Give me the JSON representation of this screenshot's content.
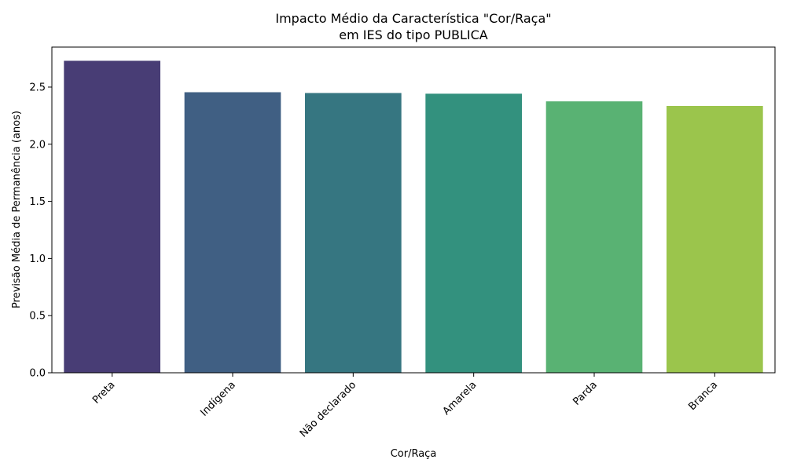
{
  "chart_data": {
    "type": "bar",
    "title_line1": "Impacto Médio da Característica \"Cor/Raça\"",
    "title_line2": "em IES do tipo PUBLICA",
    "xlabel": "Cor/Raça",
    "ylabel": "Previsão Média de Permanência (anos)",
    "categories": [
      "Preta",
      "Indígena",
      "Não declarado",
      "Amarela",
      "Parda",
      "Branca"
    ],
    "values": [
      2.73,
      2.455,
      2.448,
      2.442,
      2.375,
      2.335
    ],
    "colors": [
      "#483d75",
      "#405f83",
      "#367681",
      "#33917e",
      "#59b273",
      "#9bc54c"
    ],
    "ylim": [
      0,
      2.85
    ],
    "yticks": [
      "0.0",
      "0.5",
      "1.0",
      "1.5",
      "2.0",
      "2.5"
    ],
    "grid": false,
    "legend": "none"
  }
}
